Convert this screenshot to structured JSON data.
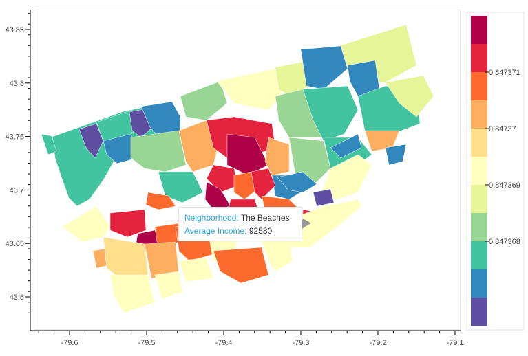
{
  "chart_data": {
    "type": "choropleth",
    "xlim": [
      -79.65,
      -79.1
    ],
    "ylim": [
      43.575,
      43.87
    ],
    "x_ticks": [
      "-79.6",
      "-79.5",
      "-79.4",
      "-79.3",
      "-79.2",
      "-79.1"
    ],
    "x_tick_values": [
      -79.6,
      -79.5,
      -79.4,
      -79.3,
      -79.2,
      -79.1
    ],
    "y_ticks": [
      "43.85",
      "43.8",
      "43.75",
      "43.7",
      "43.65",
      "43.6"
    ],
    "y_tick_values": [
      43.85,
      43.8,
      43.75,
      43.7,
      43.65,
      43.6
    ],
    "colorbar": {
      "palette": [
        "#5e4fa2",
        "#3288bd",
        "#42c4a0",
        "#99d594",
        "#e6f598",
        "#ffffbf",
        "#fee08b",
        "#fdae61",
        "#fc6a2e",
        "#e4233f",
        "#ad0046"
      ],
      "tick_labels": [
        "0.847368",
        "0.847369",
        "0.84737",
        "0.847371"
      ],
      "tick_positions": [
        3,
        5,
        7,
        9
      ]
    },
    "tooltip": {
      "neighborhood_label": "Neighborhood:",
      "neighborhood_value": "The Beaches",
      "income_label": "Average Income:",
      "income_value": "92580"
    }
  }
}
